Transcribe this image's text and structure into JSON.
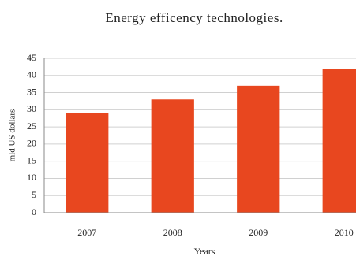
{
  "chart_data": {
    "type": "bar",
    "title": "Energy efficency technologies.",
    "x_label": "Years",
    "y_label": "mld US dollars",
    "categories": [
      "2007",
      "2008",
      "2009",
      "2010"
    ],
    "values": [
      29,
      33,
      37,
      42
    ],
    "color": "#e8471f",
    "ylim": [
      0,
      45
    ],
    "yticks": [
      0,
      5,
      10,
      15,
      20,
      25,
      30,
      35,
      40,
      45
    ],
    "grid": true
  }
}
